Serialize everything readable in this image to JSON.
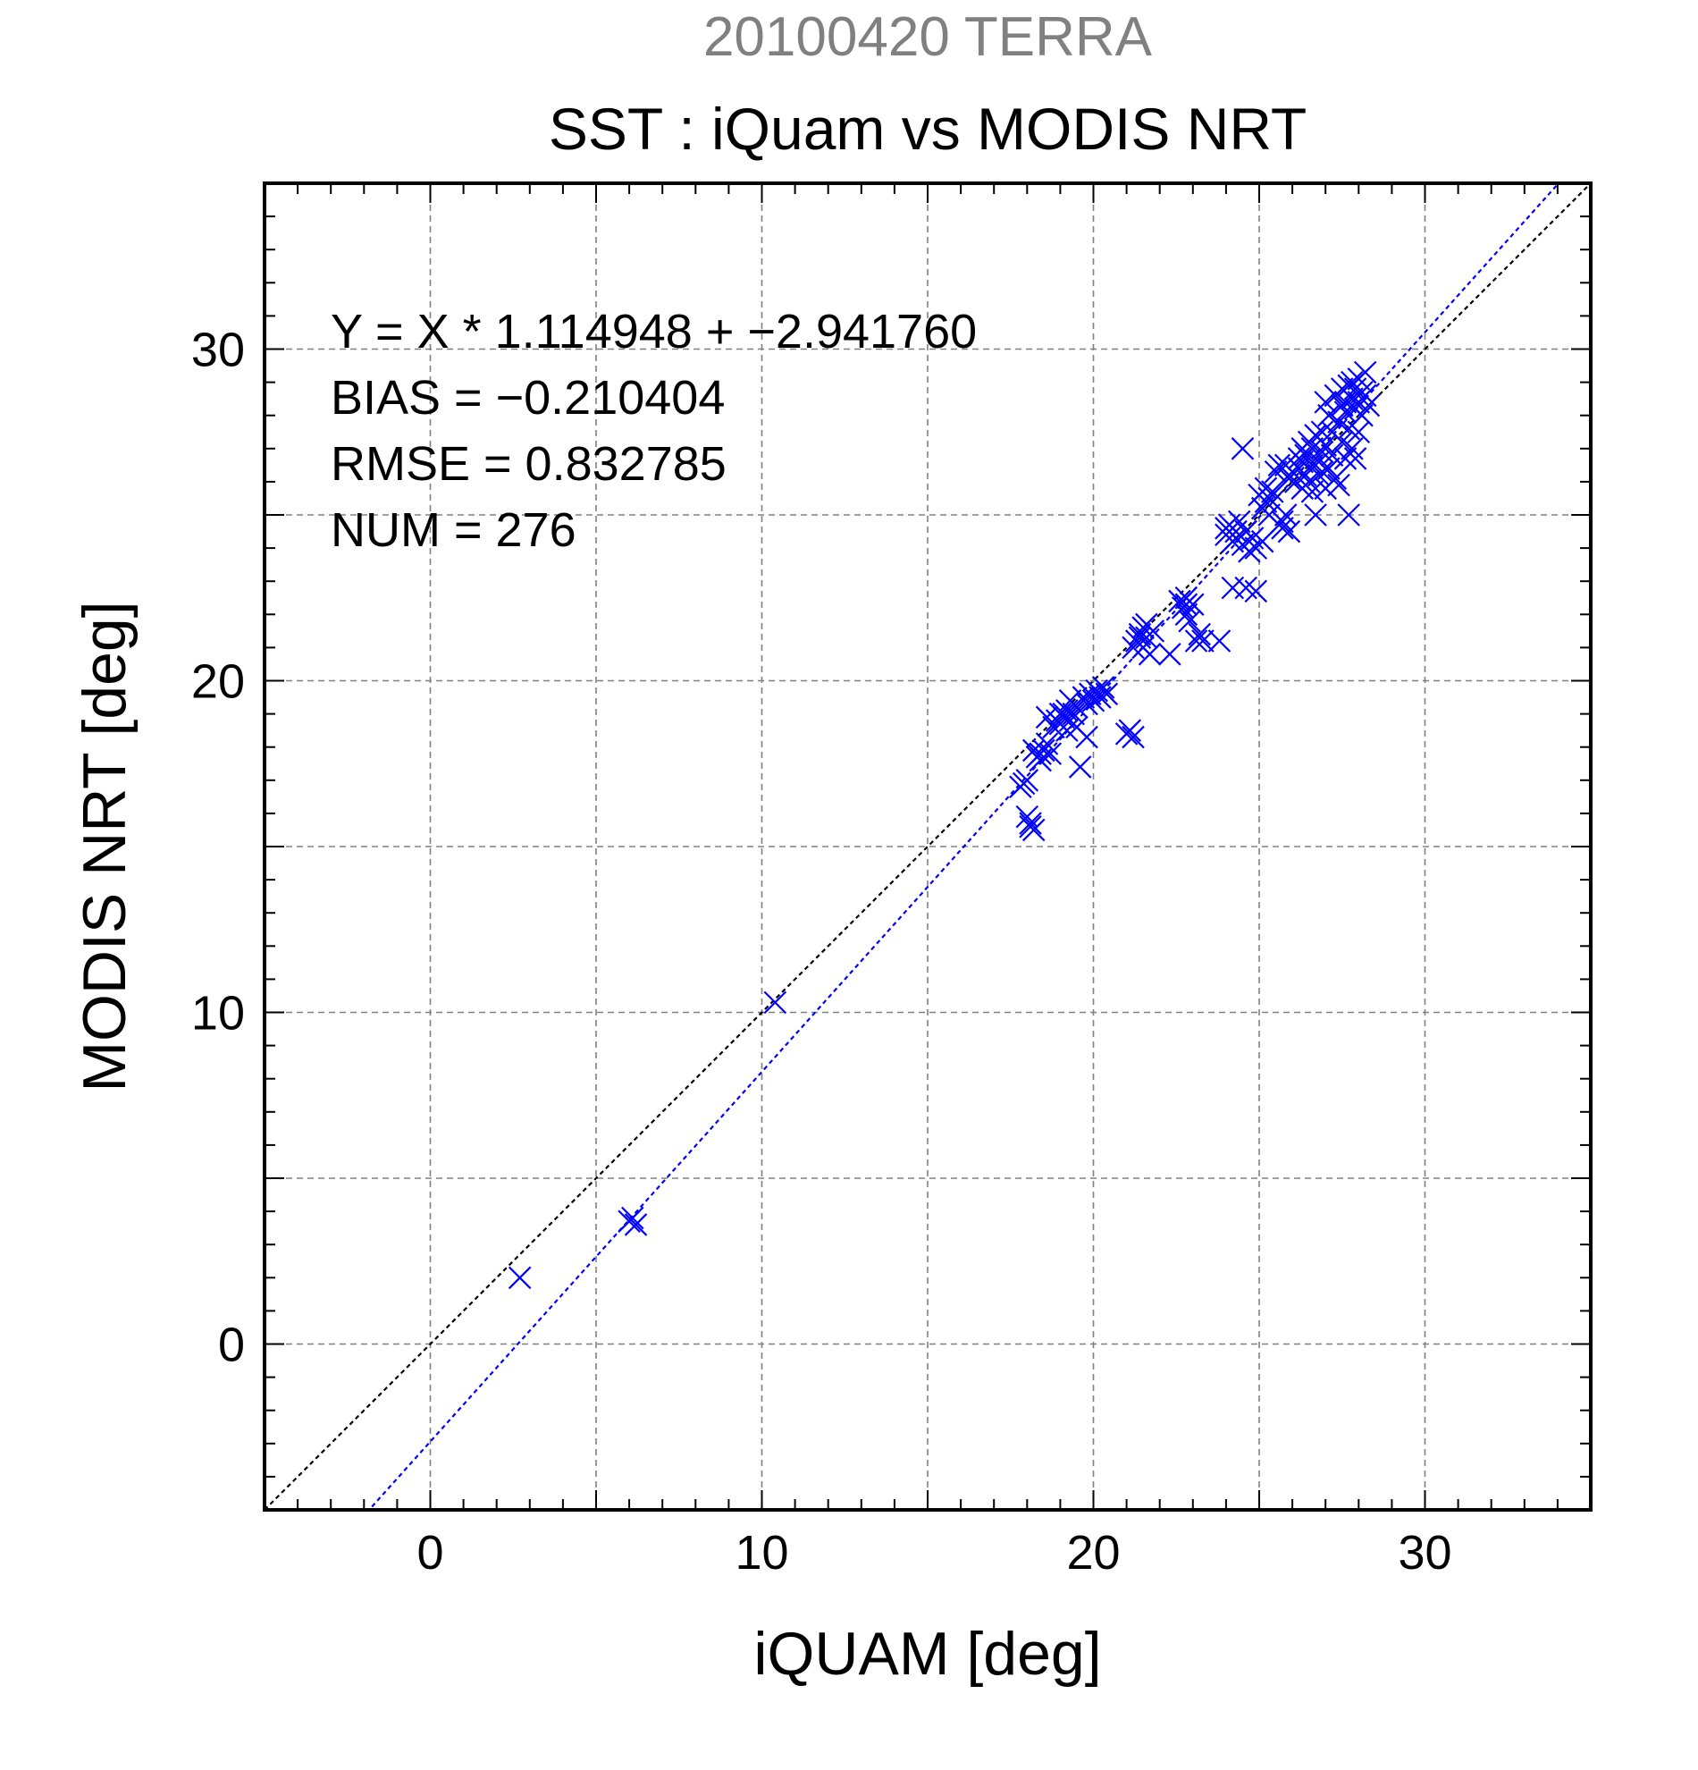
{
  "chart_data": {
    "type": "scatter",
    "supertitle": "20100420 TERRA",
    "title": "SST : iQuam vs MODIS NRT",
    "xlabel": "iQUAM [deg]",
    "ylabel": "MODIS NRT [deg]",
    "xlim": [
      -5,
      35
    ],
    "ylim": [
      -5,
      35
    ],
    "xticks": [
      0,
      10,
      20,
      30
    ],
    "yticks": [
      0,
      10,
      20,
      30
    ],
    "minor_tick_step": 1,
    "grid": true,
    "grid_step": 5,
    "stats": {
      "equation": "Y = X * 1.114948 + −2.941760",
      "bias": "BIAS = −0.210404",
      "rmse": "RMSE = 0.832785",
      "num": "NUM = 276"
    },
    "fit_line": {
      "slope": 1.114948,
      "intercept": -2.94176
    },
    "identity_line": {
      "slope": 1,
      "intercept": 0
    },
    "colors": {
      "points": "#0000ff",
      "fit_line": "#0000ff",
      "identity_line": "#000000",
      "grid": "#808080",
      "supertitle": "#808080",
      "text": "#000000"
    },
    "series": [
      {
        "marker": "x",
        "points": [
          [
            2.7,
            2.0
          ],
          [
            6.0,
            3.7
          ],
          [
            6.2,
            3.6
          ],
          [
            6.1,
            3.8
          ],
          [
            10.4,
            10.3
          ],
          [
            17.8,
            16.8
          ],
          [
            17.9,
            16.9
          ],
          [
            18.0,
            17.0
          ],
          [
            18.0,
            15.9
          ],
          [
            18.1,
            15.6
          ],
          [
            18.2,
            15.5
          ],
          [
            18.1,
            15.7
          ],
          [
            18.2,
            17.9
          ],
          [
            18.3,
            17.7
          ],
          [
            18.4,
            17.6
          ],
          [
            18.5,
            17.9
          ],
          [
            18.6,
            18.1
          ],
          [
            18.7,
            17.8
          ],
          [
            18.8,
            18.6
          ],
          [
            18.6,
            18.9
          ],
          [
            18.9,
            18.8
          ],
          [
            19.0,
            18.7
          ],
          [
            19.0,
            19.0
          ],
          [
            19.1,
            18.9
          ],
          [
            19.2,
            18.5
          ],
          [
            19.2,
            19.1
          ],
          [
            19.3,
            18.8
          ],
          [
            19.3,
            19.4
          ],
          [
            19.4,
            19.0
          ],
          [
            19.5,
            18.6
          ],
          [
            19.5,
            19.2
          ],
          [
            19.6,
            17.4
          ],
          [
            19.7,
            19.5
          ],
          [
            19.8,
            18.3
          ],
          [
            19.8,
            19.3
          ],
          [
            19.9,
            19.6
          ],
          [
            20.0,
            19.4
          ],
          [
            20.1,
            19.7
          ],
          [
            20.2,
            19.5
          ],
          [
            20.3,
            19.8
          ],
          [
            20.4,
            19.6
          ],
          [
            21.0,
            18.4
          ],
          [
            21.1,
            18.5
          ],
          [
            21.2,
            18.3
          ],
          [
            21.2,
            21.0
          ],
          [
            21.3,
            21.2
          ],
          [
            21.4,
            21.4
          ],
          [
            21.5,
            21.6
          ],
          [
            21.5,
            21.0
          ],
          [
            21.6,
            21.3
          ],
          [
            21.6,
            21.7
          ],
          [
            21.7,
            20.8
          ],
          [
            21.8,
            21.5
          ],
          [
            22.3,
            20.8
          ],
          [
            22.6,
            22.4
          ],
          [
            22.7,
            22.2
          ],
          [
            22.8,
            22.5
          ],
          [
            22.8,
            22.0
          ],
          [
            22.9,
            21.8
          ],
          [
            23.0,
            22.3
          ],
          [
            23.1,
            21.2
          ],
          [
            23.2,
            21.4
          ],
          [
            23.3,
            21.2
          ],
          [
            23.8,
            21.2
          ],
          [
            24.0,
            24.4
          ],
          [
            24.1,
            24.7
          ],
          [
            24.2,
            24.2
          ],
          [
            24.2,
            22.8
          ],
          [
            24.3,
            24.5
          ],
          [
            24.4,
            24.8
          ],
          [
            24.5,
            24.1
          ],
          [
            24.5,
            27.0
          ],
          [
            24.6,
            24.5
          ],
          [
            24.6,
            22.8
          ],
          [
            24.7,
            23.9
          ],
          [
            24.8,
            24.3
          ],
          [
            24.9,
            24.0
          ],
          [
            24.9,
            22.7
          ],
          [
            25.0,
            25.6
          ],
          [
            25.1,
            24.2
          ],
          [
            25.1,
            25.2
          ],
          [
            25.2,
            25.8
          ],
          [
            25.3,
            25.5
          ],
          [
            25.3,
            25.0
          ],
          [
            25.4,
            25.7
          ],
          [
            25.5,
            26.3
          ],
          [
            25.6,
            26.5
          ],
          [
            25.7,
            24.6
          ],
          [
            25.7,
            24.8
          ],
          [
            25.8,
            25.0
          ],
          [
            25.9,
            24.5
          ],
          [
            25.8,
            26.5
          ],
          [
            26.0,
            26.3
          ],
          [
            26.1,
            26.0
          ],
          [
            26.2,
            26.4
          ],
          [
            26.2,
            26.7
          ],
          [
            26.3,
            25.8
          ],
          [
            26.3,
            27.0
          ],
          [
            26.4,
            26.2
          ],
          [
            26.4,
            26.8
          ],
          [
            26.5,
            27.2
          ],
          [
            26.5,
            26.0
          ],
          [
            26.6,
            25.7
          ],
          [
            26.6,
            26.5
          ],
          [
            26.7,
            25.0
          ],
          [
            26.7,
            27.4
          ],
          [
            26.8,
            26.6
          ],
          [
            26.8,
            26.2
          ],
          [
            26.9,
            27.5
          ],
          [
            26.9,
            26.9
          ],
          [
            27.0,
            25.8
          ],
          [
            27.0,
            27.1
          ],
          [
            27.0,
            28.4
          ],
          [
            27.1,
            26.4
          ],
          [
            27.1,
            28.0
          ],
          [
            27.2,
            27.5
          ],
          [
            27.2,
            26.8
          ],
          [
            27.3,
            28.6
          ],
          [
            27.3,
            26.1
          ],
          [
            27.4,
            27.8
          ],
          [
            27.4,
            25.9
          ],
          [
            27.5,
            28.3
          ],
          [
            27.5,
            28.8
          ],
          [
            27.5,
            27.2
          ],
          [
            27.6,
            26.7
          ],
          [
            27.6,
            28.1
          ],
          [
            27.7,
            25.0
          ],
          [
            27.7,
            28.9
          ],
          [
            27.7,
            27.6
          ],
          [
            27.8,
            28.5
          ],
          [
            27.8,
            27.0
          ],
          [
            27.9,
            28.2
          ],
          [
            27.9,
            28.8
          ],
          [
            27.9,
            26.7
          ],
          [
            28.0,
            29.1
          ],
          [
            28.0,
            28.4
          ],
          [
            28.0,
            27.5
          ],
          [
            28.1,
            28.7
          ],
          [
            28.1,
            28.0
          ],
          [
            28.2,
            29.3
          ],
          [
            28.2,
            28.6
          ],
          [
            28.3,
            28.3
          ],
          [
            27.6,
            28.4
          ],
          [
            27.8,
            29.0
          ],
          [
            26.6,
            27.0
          ],
          [
            26.9,
            26.3
          ],
          [
            26.3,
            26.6
          ],
          [
            25.9,
            26.1
          ],
          [
            24.3,
            24.3
          ],
          [
            24.0,
            24.6
          ],
          [
            21.4,
            21.3
          ],
          [
            19.1,
            19.0
          ],
          [
            18.4,
            17.8
          ],
          [
            22.8,
            22.3
          ],
          [
            25.2,
            25.4
          ]
        ]
      }
    ]
  }
}
